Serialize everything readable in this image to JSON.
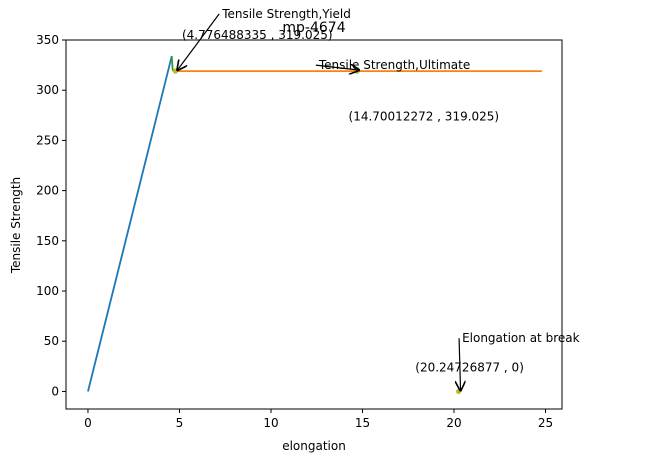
{
  "chart_data": {
    "type": "line",
    "title": "mp-4674",
    "xlabel": "elongation",
    "ylabel": "Tensile Strength",
    "xlim": [
      -1.2,
      25.9
    ],
    "ylim": [
      -17.5,
      350
    ],
    "xticks": [
      0,
      5,
      10,
      15,
      20,
      25
    ],
    "yticks": [
      0,
      50,
      100,
      150,
      200,
      250,
      300,
      350
    ],
    "grid": false,
    "series": [
      {
        "color": "#1f77b4",
        "x": [
          0,
          4.58
        ],
        "y": [
          0,
          334
        ]
      },
      {
        "color": "#2ca02c",
        "x": [
          4.58,
          4.62,
          4.65,
          4.776488335
        ],
        "y": [
          334,
          322,
          319.5,
          319.025
        ]
      },
      {
        "color": "#ff7f0e",
        "x": [
          4.776488335,
          24.8
        ],
        "y": [
          319.025,
          319.025
        ]
      }
    ],
    "points": [
      {
        "x": 4.776488335,
        "y": 319.025,
        "color": "#bcbd22"
      },
      {
        "x": 14.70012272,
        "y": 319.025,
        "color": "#bcbd22"
      },
      {
        "x": 20.24726877,
        "y": 0,
        "color": "#bcbd22"
      }
    ],
    "annotations": [
      {
        "label": "Tensile Strength,Yield",
        "coords": "(4.776488335 , 319.025)",
        "x": 4.776488335,
        "y": 319.025,
        "text_x": 10.85,
        "text_y": 372,
        "coord_x": 9.25,
        "coord_y": 351
      },
      {
        "label": "Tensile Strength,Ultimate",
        "coords": "(14.70012272 , 319.025)",
        "x": 14.70012272,
        "y": 319.025,
        "text_x": 16.75,
        "text_y": 321,
        "coord_x": 18.35,
        "coord_y": 270
      },
      {
        "label": "Elongation at break",
        "coords": "(20.24726877 , 0)",
        "x": 20.24726877,
        "y": 0,
        "text_x": 23.65,
        "text_y": 49,
        "coord_x": 20.85,
        "coord_y": 20
      }
    ]
  }
}
